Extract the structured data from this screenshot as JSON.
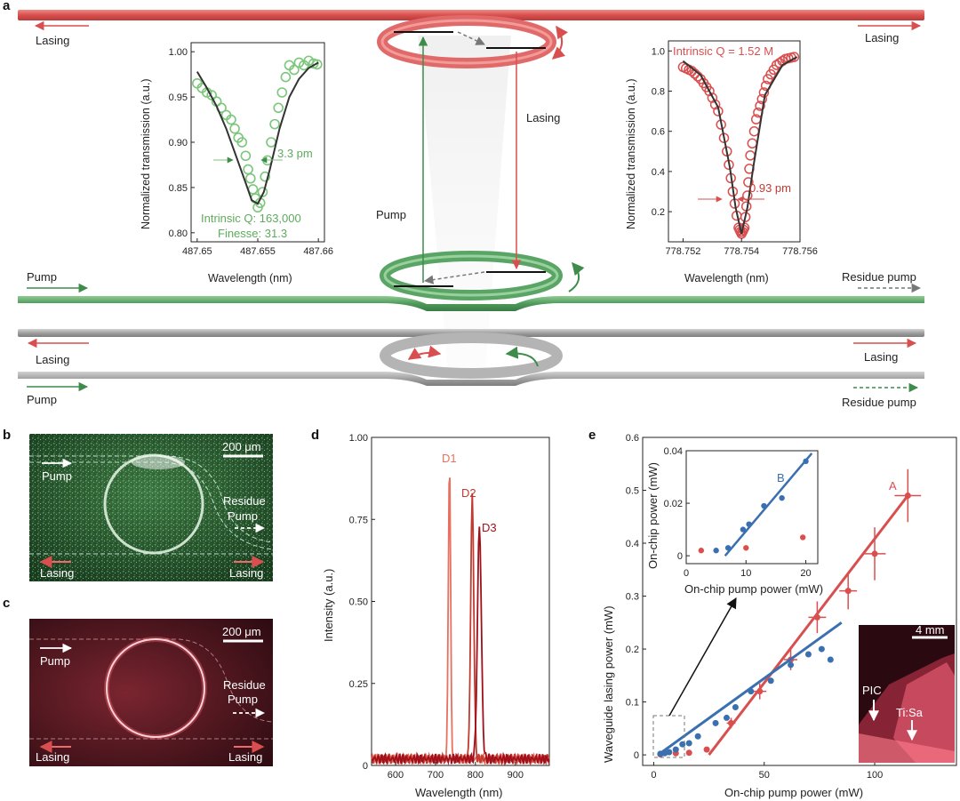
{
  "colors": {
    "red": "#d94f4f",
    "red_dark": "#b8141e",
    "red_light": "#e8705f",
    "green": "#3d8c4c",
    "green_light": "#5dab5d",
    "green_marker": "#7cc67c",
    "blue": "#3a6fb0",
    "grey": "#9a9a9a",
    "fit": "#333333"
  },
  "panel_a": {
    "letter": "a",
    "labels": {
      "lasing_top_left": "Lasing",
      "lasing_top_right": "Lasing",
      "pump_green_left": "Pump",
      "residue_pump_green": "Residue pump",
      "lasing_grey_left": "Lasing",
      "lasing_grey_right": "Lasing",
      "pump_grey_left": "Pump",
      "residue_pump_grey": "Residue pump",
      "lasing_vertical": "Lasing",
      "pump_vertical": "Pump"
    },
    "inset_left": {
      "ylabel": "Normalized transmission (a.u.)",
      "xlabel": "Wavelength (nm)",
      "yticks": [
        "0.80",
        "0.85",
        "0.90",
        "0.95",
        "1.00"
      ],
      "xticks": [
        "487.65",
        "487.655",
        "487.66"
      ],
      "linewidth": "3.3 pm",
      "q_text": "Intrinsic Q: 163,000",
      "finesse_text": "Finesse: 31.3"
    },
    "inset_right": {
      "ylabel": "Normalized transmission (a.u.)",
      "xlabel": "Wavelength (nm)",
      "yticks": [
        "0.2",
        "0.4",
        "0.6",
        "0.8",
        "1.0"
      ],
      "xticks": [
        "778.752",
        "778.754",
        "778.756"
      ],
      "linewidth": "0.93 pm",
      "q_text": "Intrinsic Q = 1.52 M"
    }
  },
  "panel_b": {
    "letter": "b",
    "scale_bar": "200 μm",
    "pump": "Pump",
    "residue_line1": "Residue",
    "residue_line2": "Pump",
    "lasing_left": "Lasing",
    "lasing_right": "Lasing"
  },
  "panel_c": {
    "letter": "c",
    "scale_bar": "200 μm",
    "pump": "Pump",
    "residue_line1": "Residue",
    "residue_line2": "Pump",
    "lasing_left": "Lasing",
    "lasing_right": "Lasing"
  },
  "panel_d": {
    "letter": "d",
    "ylabel": "Intensity (a.u.)",
    "xlabel": "Wavelength (nm)",
    "yticks": [
      "0",
      "0.25",
      "0.50",
      "0.75",
      "1.00"
    ],
    "xticks": [
      "600",
      "700",
      "800",
      "900"
    ],
    "peak_labels": [
      "D1",
      "D2",
      "D3"
    ]
  },
  "panel_e": {
    "letter": "e",
    "ylabel": "Waveguide lasing power (mW)",
    "xlabel": "On-chip pump power (mW)",
    "yticks": [
      "0",
      "0.1",
      "0.2",
      "0.3",
      "0.4",
      "0.5",
      "0.6"
    ],
    "xticks": [
      "0",
      "50",
      "100"
    ],
    "series_label_a": "A",
    "inset": {
      "ylabel": "On-chip power (mW)",
      "xlabel": "On-chip pump power (mW)",
      "yticks": [
        "0",
        "0.02",
        "0.04"
      ],
      "xticks": [
        "0",
        "10",
        "20"
      ],
      "series_label_b": "B"
    },
    "photo": {
      "scale_bar": "4 mm",
      "pic": "PIC",
      "tisa": "Ti:Sa"
    }
  },
  "chart_data": [
    {
      "id": "a-left-transmission",
      "type": "scatter",
      "xlabel": "Wavelength (nm)",
      "ylabel": "Normalized transmission (a.u.)",
      "xlim": [
        487.6495,
        487.6605
      ],
      "ylim": [
        0.79,
        1.01
      ],
      "series": [
        {
          "x": [
            487.65,
            487.6504,
            487.6508,
            487.6512,
            487.6516,
            487.652,
            487.6524,
            487.6528,
            487.6531,
            487.6534,
            487.6537,
            487.654,
            487.6542,
            487.6544,
            487.6546,
            487.6548,
            487.655,
            487.6552,
            487.6554,
            487.6556,
            487.6558,
            487.6561,
            487.6564,
            487.6567,
            487.657,
            487.6573,
            487.6576,
            487.658,
            487.6584,
            487.6588,
            487.6592,
            487.6596,
            487.6599
          ],
          "y": [
            0.965,
            0.96,
            0.955,
            0.952,
            0.945,
            0.938,
            0.93,
            0.925,
            0.915,
            0.905,
            0.9,
            0.885,
            0.87,
            0.86,
            0.848,
            0.838,
            0.828,
            0.833,
            0.845,
            0.862,
            0.88,
            0.9,
            0.92,
            0.938,
            0.955,
            0.972,
            0.985,
            0.98,
            0.988,
            0.985,
            0.99,
            0.987,
            0.986
          ]
        }
      ],
      "fit": {
        "x": [
          487.65,
          487.6508,
          487.6516,
          487.6524,
          487.6532,
          487.654,
          487.6545,
          487.655,
          487.6555,
          487.656,
          487.6568,
          487.6576,
          487.6584,
          487.6592,
          487.66
        ],
        "y": [
          0.978,
          0.96,
          0.94,
          0.915,
          0.885,
          0.855,
          0.836,
          0.832,
          0.845,
          0.87,
          0.915,
          0.95,
          0.97,
          0.982,
          0.988
        ]
      }
    },
    {
      "id": "a-right-transmission",
      "type": "scatter",
      "xlabel": "Wavelength (nm)",
      "ylabel": "Normalized transmission (a.u.)",
      "xlim": [
        778.7515,
        778.756
      ],
      "ylim": [
        0.05,
        1.05
      ],
      "series": [
        {
          "x": [
            778.752,
            778.7523,
            778.7526,
            778.7529,
            778.7532,
            778.7535,
            778.7537,
            778.7539,
            778.754,
            778.7541,
            778.7542,
            778.7543,
            778.7545,
            778.7547,
            778.7549,
            778.7552,
            778.7555,
            778.7558
          ],
          "y": [
            0.92,
            0.9,
            0.86,
            0.8,
            0.7,
            0.5,
            0.3,
            0.12,
            0.09,
            0.12,
            0.28,
            0.48,
            0.66,
            0.76,
            0.86,
            0.93,
            0.96,
            0.97
          ]
        }
      ],
      "fit": {
        "x": [
          778.752,
          778.7526,
          778.7532,
          778.7536,
          778.7538,
          778.754,
          778.7542,
          778.7544,
          778.7548,
          778.7554,
          778.7559
        ],
        "y": [
          0.95,
          0.88,
          0.72,
          0.42,
          0.22,
          0.09,
          0.22,
          0.42,
          0.78,
          0.93,
          0.97
        ]
      }
    },
    {
      "id": "d-spectra",
      "type": "line",
      "xlabel": "Wavelength (nm)",
      "ylabel": "Intensity (a.u.)",
      "xlim": [
        540,
        985
      ],
      "ylim": [
        0,
        1.0
      ],
      "series": [
        {
          "name": "D1",
          "peak_x": 735,
          "peak_y": 0.91,
          "color": "#e8705f"
        },
        {
          "name": "D2",
          "peak_x": 792,
          "peak_y": 0.8,
          "color": "#c23a30"
        },
        {
          "name": "D3",
          "peak_x": 810,
          "peak_y": 0.71,
          "color": "#a0101a"
        }
      ],
      "baseline": 0.02
    },
    {
      "id": "e-lasing-power",
      "type": "scatter",
      "xlabel": "On-chip pump power (mW)",
      "ylabel": "Waveguide lasing power (mW)",
      "xlim": [
        -5,
        137
      ],
      "ylim": [
        -0.02,
        0.6
      ],
      "series": [
        {
          "name": "A",
          "color": "#d94f4f",
          "x": [
            3,
            10,
            16,
            24,
            35,
            48,
            62,
            74,
            88,
            100,
            115
          ],
          "y": [
            0.001,
            0.003,
            0.004,
            0.01,
            0.06,
            0.12,
            0.18,
            0.26,
            0.31,
            0.38,
            0.49
          ],
          "xerr": [
            0,
            0,
            0,
            0,
            2,
            3,
            3,
            4,
            4,
            5,
            6
          ],
          "yerr": [
            0,
            0,
            0,
            0,
            0.01,
            0.015,
            0.02,
            0.03,
            0.035,
            0.05,
            0.05
          ],
          "fit": {
            "x": [
              25,
              115
            ],
            "y": [
              0.0,
              0.49
            ]
          }
        },
        {
          "name": "B",
          "color": "#3a6fb0",
          "x": [
            3,
            5,
            7,
            10,
            13,
            16,
            20,
            28,
            33,
            37,
            44,
            53,
            62,
            70,
            76,
            80
          ],
          "y": [
            0.002,
            0.003,
            0.005,
            0.01,
            0.02,
            0.022,
            0.035,
            0.06,
            0.07,
            0.09,
            0.12,
            0.14,
            0.17,
            0.19,
            0.2,
            0.18
          ],
          "fit": {
            "x": [
              2,
              85
            ],
            "y": [
              0.0,
              0.25
            ]
          }
        }
      ]
    },
    {
      "id": "e-inset",
      "type": "scatter",
      "xlabel": "On-chip pump power (mW)",
      "ylabel": "On-chip power (mW)",
      "xlim": [
        0,
        22
      ],
      "ylim": [
        -0.003,
        0.04
      ],
      "series": [
        {
          "name": "B",
          "color": "#3a6fb0",
          "x": [
            5,
            7,
            9.5,
            10.5,
            13,
            16,
            20
          ],
          "y": [
            0.002,
            0.003,
            0.01,
            0.012,
            0.019,
            0.022,
            0.036
          ],
          "fit": {
            "x": [
              6.5,
              21
            ],
            "y": [
              0.0,
              0.039
            ]
          }
        },
        {
          "name": "A",
          "color": "#d94f4f",
          "x": [
            2.5,
            10,
            19.5
          ],
          "y": [
            0.002,
            0.003,
            0.007
          ]
        }
      ]
    }
  ]
}
